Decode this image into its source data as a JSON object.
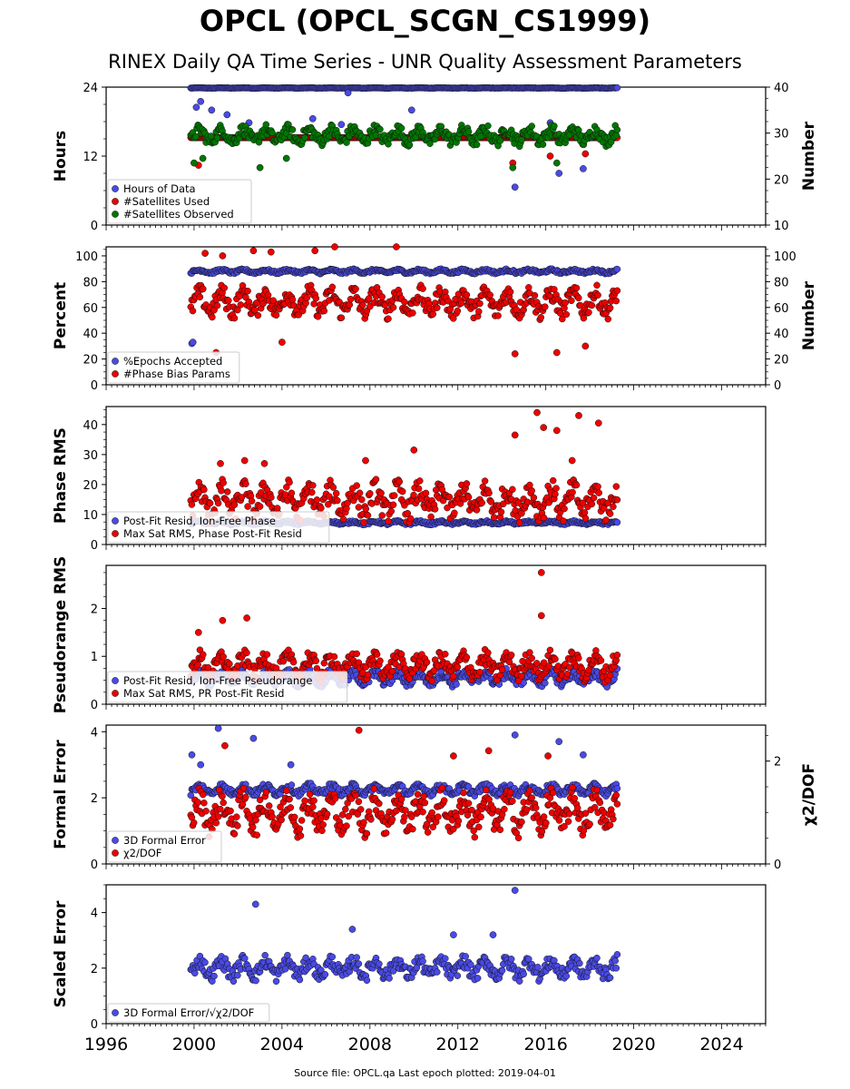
{
  "page": {
    "title": "OPCL (OPCL_SCGN_CS1999)",
    "subtitle": "RINEX Daily QA Time Series - UNR Quality Assessment Parameters",
    "footer": "Source file: OPCL.qa Last epoch plotted: 2019-04-01"
  },
  "colors": {
    "blue": "#4a4ae6",
    "red": "#ee0000",
    "green": "#007700",
    "edge": "#111111"
  },
  "chart_data": [
    {
      "type": "scatter",
      "ylabel": "Hours",
      "ylim": [
        0,
        24
      ],
      "yticks": [
        "0",
        "12",
        "24"
      ],
      "y2label": "Number",
      "y2lim": [
        10,
        40
      ],
      "y2ticks": [
        "10",
        "20",
        "30",
        "40"
      ],
      "legend_position": "bottom-left",
      "series": [
        {
          "name": "Hours of Data",
          "color": "blue",
          "axis": "left",
          "typical": [
            23.8,
            23.9
          ],
          "outliers": [
            [
              2000.1,
              20.5
            ],
            [
              2000.3,
              21.5
            ],
            [
              2000.8,
              20
            ],
            [
              2001.5,
              19.2
            ],
            [
              2002.5,
              17.8
            ],
            [
              2003.5,
              16.2
            ],
            [
              2005.4,
              18.5
            ],
            [
              2006.7,
              17.5
            ],
            [
              2007.0,
              23.0
            ],
            [
              2009.9,
              20.0
            ],
            [
              2014.6,
              6.6
            ],
            [
              2016.2,
              17.8
            ],
            [
              2016.6,
              9.0
            ],
            [
              2017.7,
              9.8
            ]
          ]
        },
        {
          "name": "#Satellites Used",
          "color": "red",
          "axis": "right",
          "typical": [
            29,
            29
          ],
          "outliers": [
            [
              2000.2,
              23
            ],
            [
              2014.5,
              23.5
            ],
            [
              2016.2,
              25
            ],
            [
              2017.8,
              25.5
            ]
          ]
        },
        {
          "name": "#Satellites Observed",
          "color": "green",
          "axis": "right",
          "typical": [
            27,
            32
          ],
          "outliers": [
            [
              2000.0,
              23.5
            ],
            [
              2000.4,
              24.5
            ],
            [
              2003.0,
              22.5
            ],
            [
              2004.2,
              24.5
            ],
            [
              2014.5,
              22.5
            ],
            [
              2016.5,
              23.5
            ]
          ]
        }
      ]
    },
    {
      "type": "scatter",
      "ylabel": "Percent",
      "ylim": [
        0,
        107
      ],
      "yticks": [
        "0",
        "20",
        "40",
        "60",
        "80",
        "100"
      ],
      "y2label": "Number",
      "y2lim": [
        0,
        107
      ],
      "y2ticks": [
        "0",
        "20",
        "40",
        "60",
        "80",
        "100"
      ],
      "legend_position": "bottom-left",
      "series": [
        {
          "name": "%Epochs Accepted",
          "color": "blue",
          "axis": "left",
          "typical": [
            86,
            90
          ],
          "outliers": [
            [
              1999.9,
              32
            ],
            [
              1999.95,
              33
            ]
          ]
        },
        {
          "name": "#Phase Bias Params",
          "color": "red",
          "axis": "right",
          "typical": [
            50,
            78
          ],
          "outliers": [
            [
              2000.5,
              102
            ],
            [
              2001.3,
              100
            ],
            [
              2002.7,
              104
            ],
            [
              2003.5,
              103
            ],
            [
              2004.0,
              33
            ],
            [
              2005.5,
              104
            ],
            [
              2006.4,
              107
            ],
            [
              2009.2,
              107
            ],
            [
              2001.0,
              25
            ],
            [
              2014.6,
              24
            ],
            [
              2016.5,
              25
            ],
            [
              2017.8,
              30
            ]
          ]
        }
      ]
    },
    {
      "type": "scatter",
      "ylabel": "Phase RMS",
      "ylim": [
        0,
        46
      ],
      "yticks": [
        "0",
        "10",
        "20",
        "30",
        "40"
      ],
      "legend_position": "bottom-left",
      "series": [
        {
          "name": "Post-Fit Resid, Ion-Free Phase",
          "color": "blue",
          "axis": "left",
          "typical": [
            6.5,
            8
          ],
          "outliers": []
        },
        {
          "name": "Max Sat RMS, Phase Post-Fit Resid",
          "color": "red",
          "axis": "left",
          "typical": [
            7,
            22
          ],
          "outliers": [
            [
              2001.2,
              27
            ],
            [
              2002.3,
              28
            ],
            [
              2003.2,
              27
            ],
            [
              2007.8,
              28
            ],
            [
              2010.0,
              31.5
            ],
            [
              2014.6,
              36.5
            ],
            [
              2015.6,
              44
            ],
            [
              2015.9,
              39
            ],
            [
              2016.5,
              38
            ],
            [
              2017.5,
              43
            ],
            [
              2018.4,
              40.5
            ],
            [
              2017.2,
              28
            ]
          ]
        }
      ]
    },
    {
      "type": "scatter",
      "ylabel": "Pseudorange RMS",
      "ylim": [
        0,
        2.9
      ],
      "yticks": [
        "0",
        "1",
        "2"
      ],
      "legend_position": "bottom-left",
      "series": [
        {
          "name": "Post-Fit Resid, Ion-Free Pseudorange",
          "color": "blue",
          "axis": "left",
          "typical": [
            0.35,
            0.75
          ],
          "outliers": []
        },
        {
          "name": "Max Sat RMS, PR Post-Fit Resid",
          "color": "red",
          "axis": "left",
          "typical": [
            0.45,
            1.15
          ],
          "outliers": [
            [
              2000.2,
              1.5
            ],
            [
              2001.3,
              1.75
            ],
            [
              2002.4,
              1.8
            ],
            [
              2015.8,
              2.75
            ],
            [
              2015.8,
              1.85
            ]
          ]
        }
      ]
    },
    {
      "type": "scatter",
      "ylabel": "Formal Error",
      "ylim": [
        0,
        4.2
      ],
      "yticks": [
        "0",
        "2",
        "4"
      ],
      "y2label": "χ2/DOF",
      "y2lim": [
        0,
        2.7
      ],
      "y2ticks": [
        "0",
        "2"
      ],
      "legend_position": "bottom-left",
      "series": [
        {
          "name": "3D Formal Error",
          "color": "blue",
          "axis": "left",
          "typical": [
            2.05,
            2.45
          ],
          "outliers": [
            [
              1999.9,
              3.3
            ],
            [
              2000.3,
              3.0
            ],
            [
              2001.1,
              4.1
            ],
            [
              2002.7,
              3.8
            ],
            [
              2004.4,
              3.0
            ],
            [
              2014.6,
              3.9
            ],
            [
              2016.6,
              3.7
            ],
            [
              2017.7,
              3.3
            ]
          ]
        },
        {
          "name": "χ2/DOF",
          "color": "red",
          "axis": "right",
          "typical": [
            0.5,
            1.5
          ],
          "outliers": [
            [
              2001.4,
              2.3
            ],
            [
              2007.5,
              2.6
            ],
            [
              2011.8,
              2.1
            ],
            [
              2013.4,
              2.2
            ],
            [
              2016.1,
              2.1
            ]
          ]
        }
      ]
    },
    {
      "type": "scatter",
      "ylabel": "Scaled Error",
      "ylim": [
        0,
        5
      ],
      "yticks": [
        "0",
        "2",
        "4"
      ],
      "legend_position": "bottom-left",
      "series": [
        {
          "name": "3D Formal Error/√χ2/DOF",
          "color": "blue",
          "axis": "left",
          "typical": [
            1.5,
            2.5
          ],
          "outliers": [
            [
              2002.8,
              4.3
            ],
            [
              2014.6,
              4.8
            ],
            [
              2007.2,
              3.4
            ],
            [
              2011.8,
              3.2
            ],
            [
              2013.6,
              3.2
            ]
          ]
        }
      ]
    }
  ],
  "x_axis": {
    "xlim": [
      1996,
      2026
    ],
    "data_range": [
      1999.85,
      2019.25
    ],
    "ticks": [
      "1996",
      "2000",
      "2004",
      "2008",
      "2012",
      "2016",
      "2020",
      "2024"
    ]
  }
}
